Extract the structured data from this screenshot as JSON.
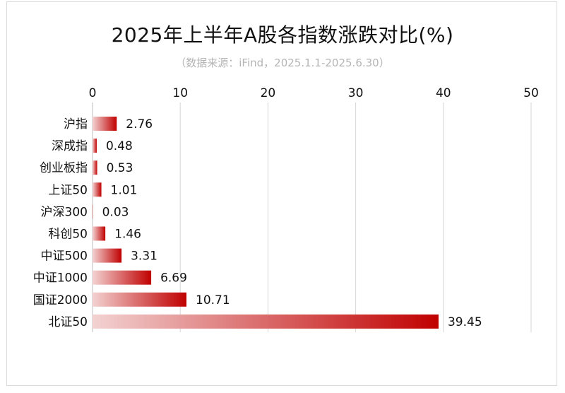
{
  "chart_data": {
    "type": "bar",
    "orientation": "horizontal",
    "title": "2025年上半年A股各指数涨跌对比(%)",
    "subtitle": "（数据来源：iFind，2025.1.1-2025.6.30）",
    "categories": [
      "沪指",
      "深成指",
      "创业板指",
      "上证50",
      "沪深300",
      "科创50",
      "中证500",
      "中证1000",
      "国证2000",
      "北证50"
    ],
    "values": [
      2.76,
      0.48,
      0.53,
      1.01,
      0.03,
      1.46,
      3.31,
      6.69,
      10.71,
      39.45
    ],
    "value_labels": [
      "2.76",
      "0.48",
      "0.53",
      "1.01",
      "0.03",
      "1.46",
      "3.31",
      "6.69",
      "10.71",
      "39.45"
    ],
    "xlim": [
      0,
      50
    ],
    "x_ticks": [
      0,
      10,
      20,
      30,
      40,
      50
    ],
    "x_axis_position": "top",
    "grid": true,
    "bar_color_start": "#f3d2d2",
    "bar_color_end": "#c00000"
  }
}
